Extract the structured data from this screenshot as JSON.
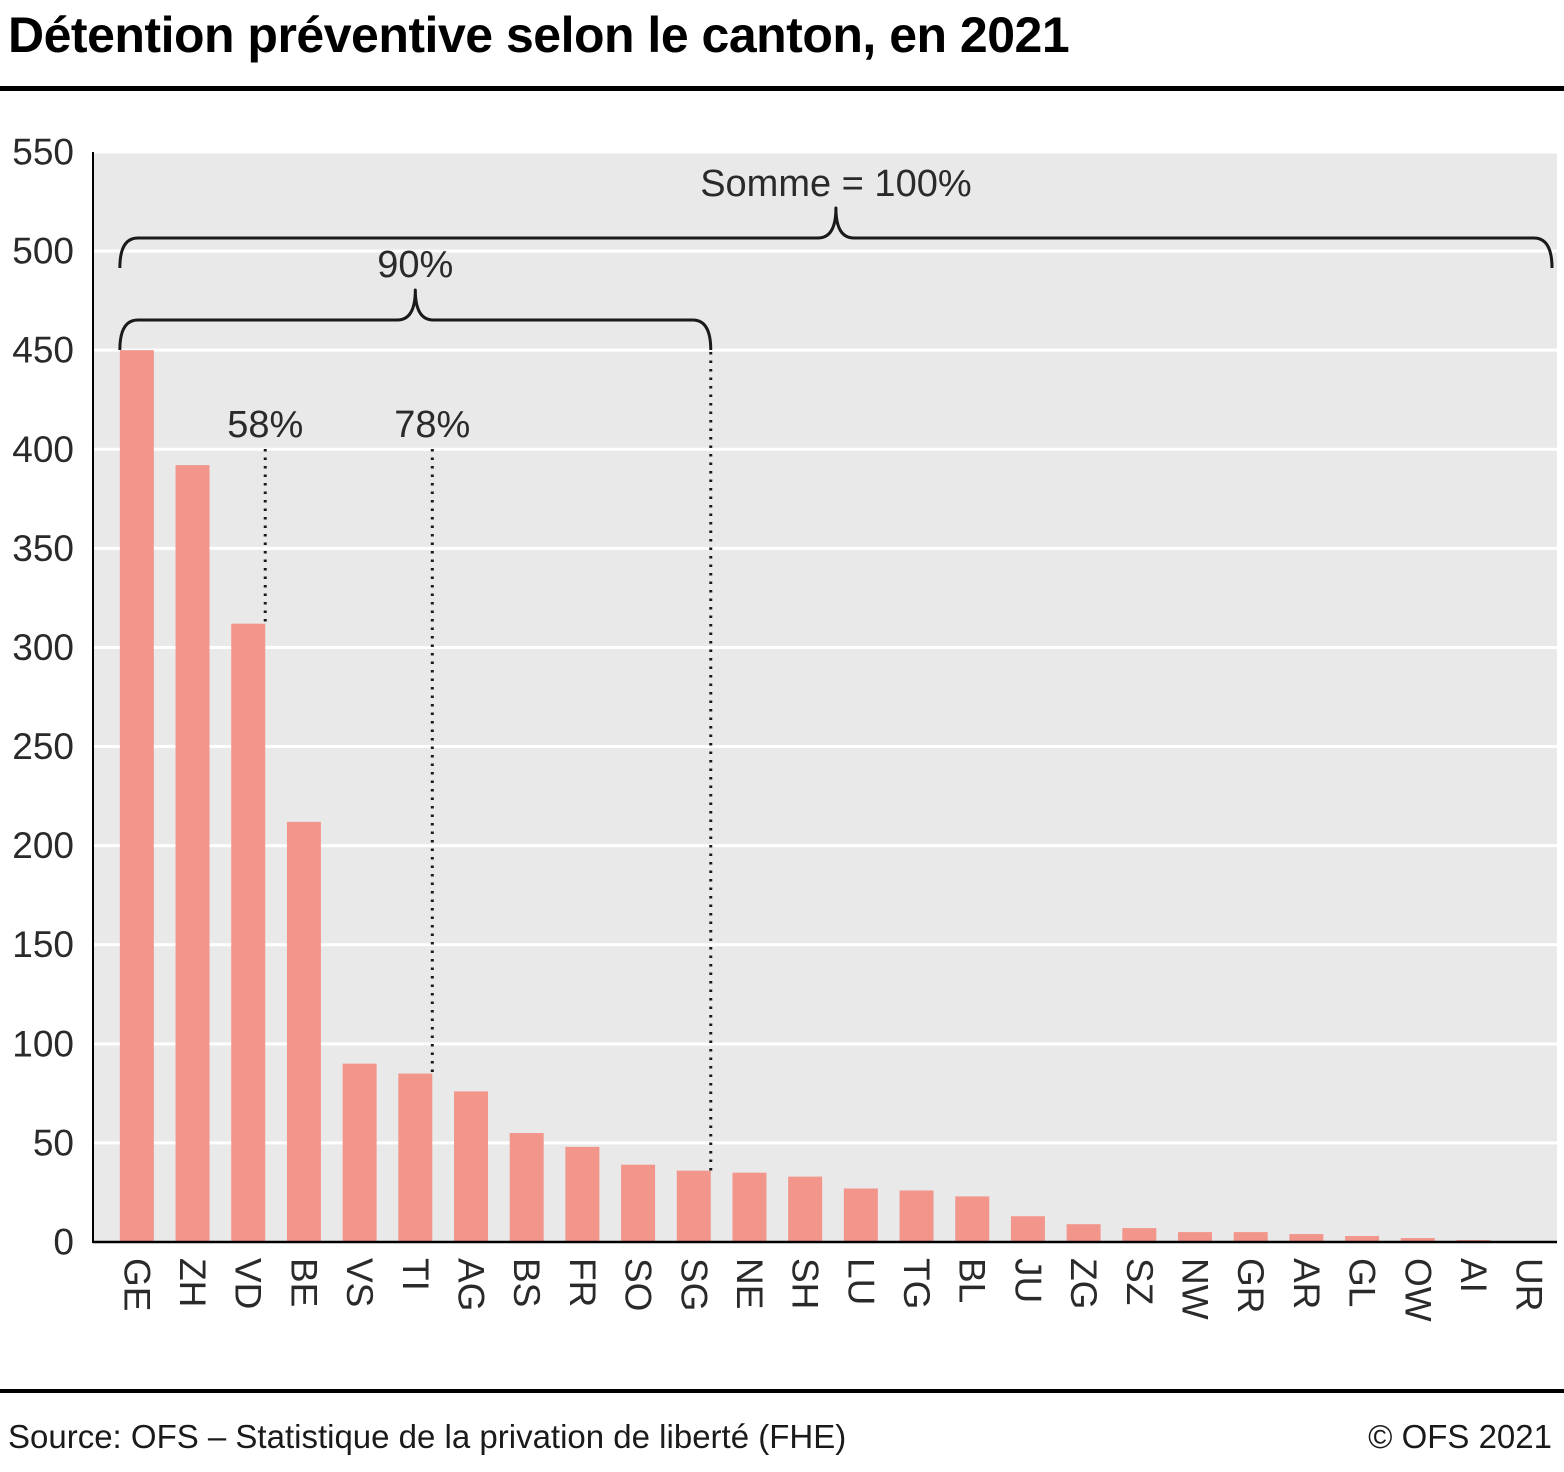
{
  "page": {
    "title": "Détention préventive selon le canton, en 2021",
    "source": "Source: OFS – Statistique de la privation de liberté (FHE)",
    "copyright": "© OFS 2021"
  },
  "chart_data": {
    "type": "bar",
    "title": "Détention préventive selon le canton, en 2021",
    "xlabel": "",
    "ylabel": "",
    "ylim": [
      0,
      550
    ],
    "ytick_step": 50,
    "grid": "horizontal-white",
    "plot_bg": "#e9e9e9",
    "bar_color": "#f2968c",
    "line_color": "#1a1a1a",
    "text_color": "#2a2a2a",
    "categories": [
      "GE",
      "ZH",
      "VD",
      "BE",
      "VS",
      "TI",
      "AG",
      "BS",
      "FR",
      "SO",
      "SG",
      "NE",
      "SH",
      "LU",
      "TG",
      "BL",
      "JU",
      "ZG",
      "SZ",
      "NW",
      "GR",
      "AR",
      "GL",
      "OW",
      "AI",
      "UR"
    ],
    "values": [
      450,
      392,
      312,
      212,
      90,
      85,
      76,
      55,
      48,
      39,
      36,
      35,
      33,
      27,
      26,
      23,
      13,
      9,
      7,
      5,
      5,
      4,
      3,
      2,
      1,
      0
    ],
    "annotations": {
      "total": {
        "label": "Somme = 100%",
        "from": "GE",
        "to": "UR"
      },
      "share_90": {
        "label": "90%",
        "from": "GE",
        "to": "SG"
      },
      "cumulative_markers": [
        {
          "label": "58%",
          "category": "VD"
        },
        {
          "label": "78%",
          "category": "TI"
        }
      ]
    }
  }
}
